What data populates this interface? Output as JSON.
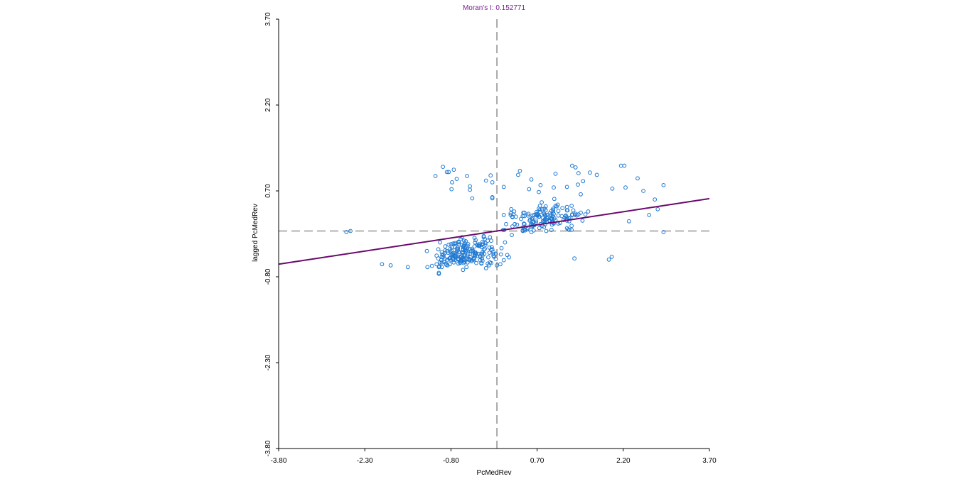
{
  "colors": {
    "title": "#7a1f8f",
    "points": "#1e78d2",
    "regression": "#6a0a6e",
    "guides": "#555555",
    "axis": "#000000"
  },
  "chart_data": {
    "type": "scatter",
    "title": "Moran's I: 0.152771",
    "xlabel": "PcMedRev",
    "ylabel": "lagged PcMedRev",
    "xlim": [
      -3.8,
      3.7
    ],
    "ylim": [
      -3.8,
      3.7
    ],
    "x_ticks": [
      "-3.80",
      "-2.30",
      "-0.80",
      "0.70",
      "2.20",
      "3.70"
    ],
    "y_ticks": [
      "-3.80",
      "-2.30",
      "-0.80",
      "0.70",
      "2.20",
      "3.70"
    ],
    "grid": false,
    "reference_lines": {
      "x_mean": 0.0,
      "y_mean": 0.0
    },
    "regression": {
      "slope": 0.152771,
      "intercept": 0.0
    },
    "points": []
  }
}
